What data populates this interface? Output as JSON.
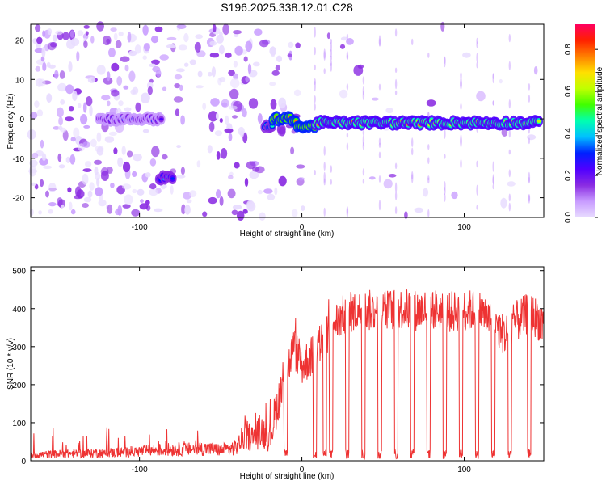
{
  "chart_data": [
    {
      "type": "heatmap",
      "title": "S196.2025.338.12.01.C28",
      "xlabel": "Height of straight line (km)",
      "ylabel": "Frequency (Hz)",
      "xlim": [
        -167,
        149
      ],
      "ylim": [
        -25,
        24
      ],
      "xticks": [
        {
          "value": -100,
          "label": "-100"
        },
        {
          "value": 0,
          "label": "0"
        },
        {
          "value": 100,
          "label": "100"
        }
      ],
      "yticks": [
        {
          "value": -20,
          "label": "-20"
        },
        {
          "value": -10,
          "label": "-10"
        },
        {
          "value": 0,
          "label": "0"
        },
        {
          "value": 10,
          "label": "10"
        },
        {
          "value": 20,
          "label": "20"
        }
      ],
      "colorbar": {
        "label": "Normalized spectral amplitude",
        "range": [
          0,
          0.92
        ],
        "ticks": [
          {
            "value": 0.0,
            "label": "0.0"
          },
          {
            "value": 0.2,
            "label": "0.2"
          },
          {
            "value": 0.4,
            "label": "0.4"
          },
          {
            "value": 0.6,
            "label": "0.6"
          },
          {
            "value": 0.8,
            "label": "0.8"
          }
        ],
        "colors": [
          "#e8dcff",
          "#c89cff",
          "#8a2be2",
          "#5000ff",
          "#0020ff",
          "#00c0ff",
          "#00ffb0",
          "#40ff00",
          "#c0ff00",
          "#ffe000",
          "#ff8000",
          "#ff2000",
          "#ff0060"
        ]
      },
      "bands": [
        {
          "x": [
            -125,
            -86
          ],
          "freq": 0,
          "amplitude": 0.25
        },
        {
          "x": [
            -88,
            -79
          ],
          "freq": -15,
          "amplitude": 0.3
        },
        {
          "x": [
            -23,
            -18
          ],
          "freq": -2,
          "amplitude": 0.45
        },
        {
          "x": [
            -18,
            -3
          ],
          "freq": 0,
          "amplitude": 0.75
        },
        {
          "x": [
            -3,
            8
          ],
          "freq": -2,
          "amplitude": 0.7
        },
        {
          "x": [
            8,
            147
          ],
          "freq": -1,
          "amplitude": 0.6
        }
      ]
    },
    {
      "type": "line",
      "title": "",
      "xlabel": "Height of straight line (km)",
      "ylabel": "SNR (10 * v/v)",
      "xlim": [
        -167,
        149
      ],
      "ylim": [
        0,
        510
      ],
      "color": "#ee3333",
      "xticks": [
        {
          "value": -100,
          "label": "-100"
        },
        {
          "value": 0,
          "label": "0"
        },
        {
          "value": 100,
          "label": "100"
        }
      ],
      "yticks": [
        {
          "value": 0,
          "label": "0"
        },
        {
          "value": 100,
          "label": "100"
        },
        {
          "value": 200,
          "label": "200"
        },
        {
          "value": 300,
          "label": "300"
        },
        {
          "value": 400,
          "label": "400"
        },
        {
          "value": 500,
          "label": "500"
        }
      ],
      "x": [
        -167,
        -150,
        -130,
        -110,
        -100,
        -90,
        -80,
        -70,
        -60,
        -50,
        -40,
        -35,
        -30,
        -25,
        -20,
        -15,
        -10,
        -5,
        0,
        5,
        10,
        15,
        20,
        25,
        30,
        40,
        50,
        60,
        70,
        80,
        90,
        100,
        110,
        120,
        125,
        130,
        140,
        149
      ],
      "values": [
        15,
        18,
        20,
        22,
        25,
        28,
        30,
        30,
        32,
        28,
        35,
        70,
        60,
        80,
        60,
        150,
        220,
        300,
        250,
        270,
        300,
        330,
        360,
        380,
        390,
        395,
        395,
        400,
        395,
        400,
        390,
        395,
        395,
        350,
        330,
        360,
        390,
        360
      ],
      "dropouts_x": [
        -10,
        8,
        14,
        18,
        28,
        38,
        48,
        58,
        68,
        78,
        88,
        98,
        108,
        118,
        128,
        140
      ]
    }
  ]
}
